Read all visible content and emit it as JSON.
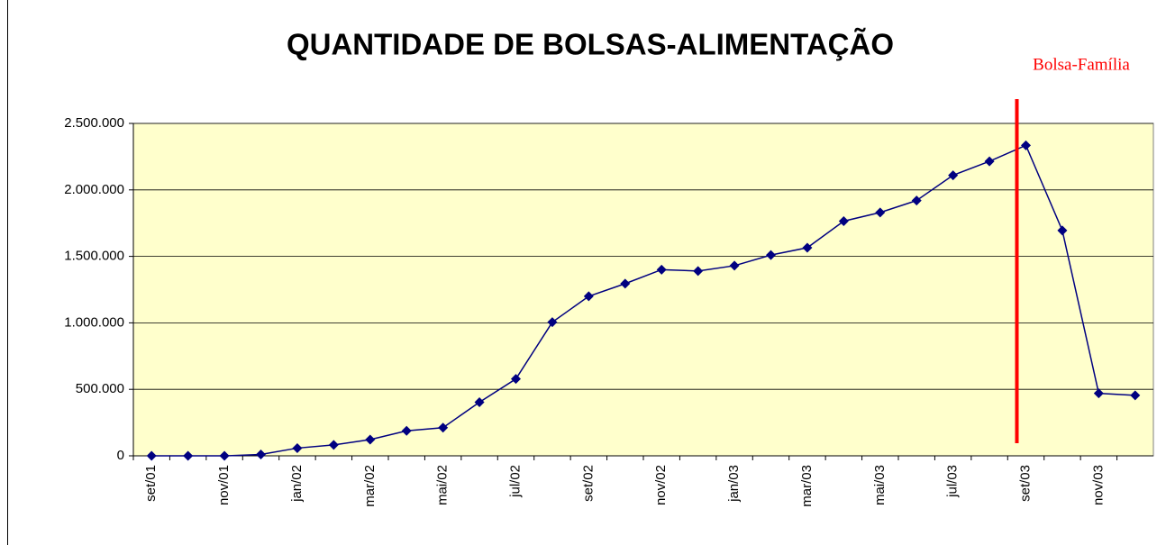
{
  "chart_data": {
    "type": "line",
    "title": "QUANTIDADE DE BOLSAS-ALIMENTAÇÃO",
    "categories": [
      "set/01",
      null,
      "nov/01",
      null,
      "jan/02",
      null,
      "mar/02",
      null,
      "mai/02",
      null,
      "jul/02",
      null,
      "set/02",
      null,
      "nov/02",
      null,
      "jan/03",
      null,
      "mar/03",
      null,
      "mai/03",
      null,
      "jul/03",
      null,
      "set/03",
      null,
      "nov/03",
      null
    ],
    "series": [
      {
        "name": "Bolsas-Alimentação",
        "color": "#000080",
        "values": [
          0,
          0,
          0,
          10000,
          58000,
          82000,
          122000,
          188000,
          212000,
          403000,
          578000,
          1005000,
          1200000,
          1295000,
          1400000,
          1390000,
          1430000,
          1510000,
          1565000,
          1765000,
          1830000,
          1920000,
          2110000,
          2215000,
          2335000,
          1695000,
          470000,
          455000
        ]
      }
    ],
    "ylim": [
      0,
      2500000
    ],
    "yticks": [
      0,
      {
        "value": 500000,
        "label": "500.000"
      },
      {
        "value": 1000000,
        "label": "1.000.000"
      },
      {
        "value": 1500000,
        "label": "1.500.000"
      },
      {
        "value": 2000000,
        "label": "2.000.000"
      },
      {
        "value": 2500000,
        "label": "2.500.000"
      }
    ],
    "grid": true,
    "background": "#ffffcc",
    "annotation": {
      "text": "Bolsa-Família",
      "color": "#ff0000"
    }
  }
}
